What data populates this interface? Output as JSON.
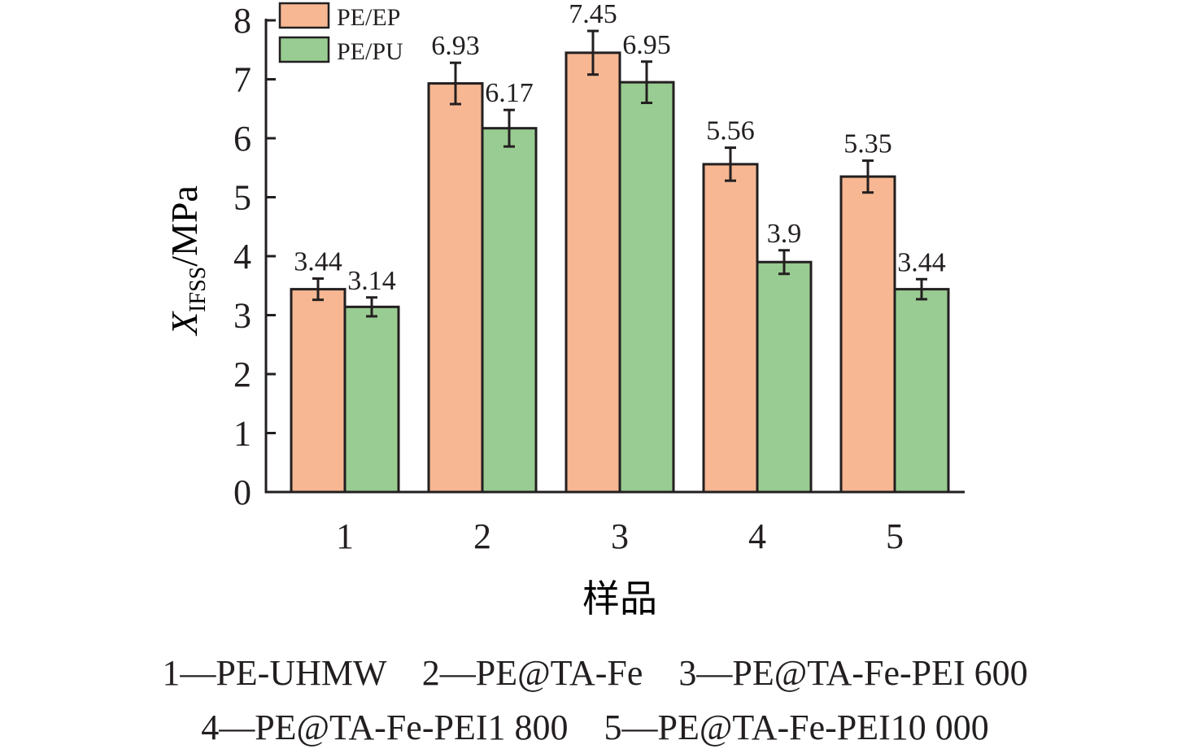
{
  "chart_data": {
    "type": "bar",
    "categories": [
      "1",
      "2",
      "3",
      "4",
      "5"
    ],
    "series": [
      {
        "name": "PE/EP",
        "color": "#f6b792",
        "values": [
          3.44,
          6.93,
          7.45,
          5.56,
          5.35
        ],
        "labels": [
          "3.44",
          "6.93",
          "7.45",
          "5.56",
          "5.35"
        ],
        "errors": [
          0.18,
          0.35,
          0.37,
          0.28,
          0.27
        ]
      },
      {
        "name": "PE/PU",
        "color": "#99cc92",
        "values": [
          3.14,
          6.17,
          6.95,
          3.9,
          3.44
        ],
        "labels": [
          "3.14",
          "6.17",
          "6.95",
          "3.9",
          "3.44"
        ],
        "errors": [
          0.16,
          0.31,
          0.35,
          0.2,
          0.17
        ]
      }
    ],
    "ylim": [
      0,
      8
    ],
    "yticks": [
      "0",
      "1",
      "2",
      "3",
      "4",
      "5",
      "6",
      "7",
      "8"
    ],
    "ylabel": {
      "main": "X",
      "subscript": "IFSS",
      "unit": "/MPa"
    },
    "xlabel": "样品",
    "legend_position": "top-left",
    "grid": false,
    "error_bars": true
  },
  "caption": {
    "line1": "1—PE-UHMW    2—PE@TA-Fe    3—PE@TA-Fe-PEI 600",
    "line2": "4—PE@TA-Fe-PEI1 800    5—PE@TA-Fe-PEI10 000"
  },
  "colors": {
    "axis": "#231f20",
    "bar_edge": "#231f20"
  }
}
